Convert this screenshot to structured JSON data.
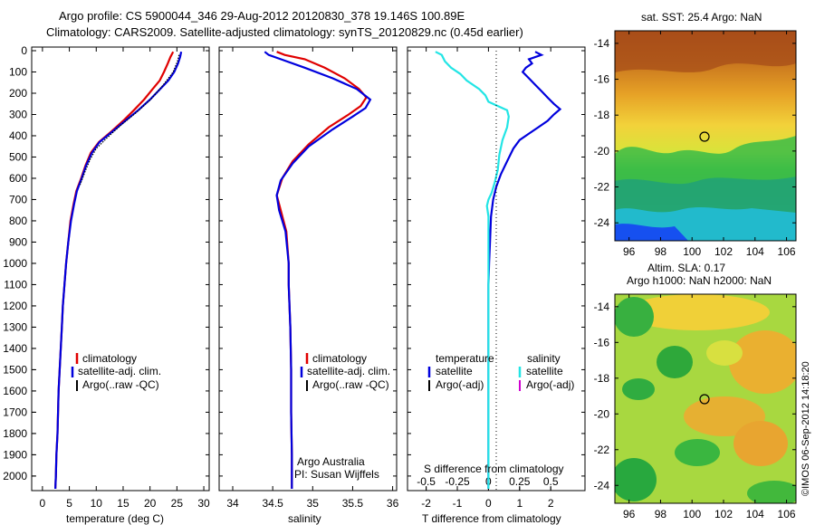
{
  "header": {
    "title_line1": "Argo profile: CS 5900044_346 29-Aug-2012 20120830_378 19.146S 100.89E",
    "title_line2": "Climatology: CARS2009. Satellite-adjusted climatology: synTS_20120829.nc (0.45d earlier)"
  },
  "colors": {
    "climatology": "#e00000",
    "satellite": "#0000dd",
    "argo": "#000000",
    "salinity_sat": "#22e5e5",
    "salinity_argo": "#d000d0"
  },
  "depth_ticks": [
    "0",
    "100",
    "200",
    "300",
    "400",
    "500",
    "600",
    "700",
    "800",
    "900",
    "1000",
    "1100",
    "1200",
    "1300",
    "1400",
    "1500",
    "1600",
    "1700",
    "1800",
    "1900",
    "2000"
  ],
  "chart_data": [
    {
      "type": "line",
      "id": "temperature",
      "xlabel": "temperature (deg C)",
      "xticks": [
        "0",
        "5",
        "10",
        "15",
        "20",
        "25",
        "30"
      ],
      "xlim": [
        -2,
        31
      ],
      "ylim": [
        2060,
        0
      ],
      "legend": [
        "climatology",
        "satellite-adj. clim.",
        "Argo(..raw -QC)"
      ],
      "series": [
        {
          "name": "climatology",
          "color": "#e00000",
          "points": [
            [
              24.3,
              5
            ],
            [
              23.8,
              30
            ],
            [
              23.3,
              60
            ],
            [
              22.6,
              100
            ],
            [
              21.8,
              140
            ],
            [
              20.5,
              180
            ],
            [
              18.9,
              230
            ],
            [
              17.0,
              280
            ],
            [
              15.0,
              330
            ],
            [
              12.8,
              380
            ],
            [
              10.5,
              430
            ],
            [
              9.0,
              480
            ],
            [
              8.0,
              540
            ],
            [
              7.2,
              600
            ],
            [
              6.3,
              660
            ],
            [
              5.8,
              720
            ],
            [
              5.2,
              800
            ],
            [
              4.8,
              900
            ],
            [
              4.4,
              1000
            ],
            [
              4.1,
              1100
            ],
            [
              3.8,
              1200
            ],
            [
              3.6,
              1300
            ],
            [
              3.4,
              1400
            ],
            [
              3.2,
              1500
            ],
            [
              3.0,
              1600
            ],
            [
              2.9,
              1700
            ],
            [
              2.8,
              1800
            ],
            [
              2.6,
              1900
            ],
            [
              2.5,
              2000
            ],
            [
              2.4,
              2060
            ]
          ]
        },
        {
          "name": "satellite-adj. clim.",
          "color": "#0000dd",
          "points": [
            [
              25.8,
              5
            ],
            [
              25.6,
              30
            ],
            [
              25.2,
              60
            ],
            [
              24.5,
              100
            ],
            [
              23.4,
              140
            ],
            [
              21.9,
              180
            ],
            [
              20.0,
              230
            ],
            [
              17.8,
              280
            ],
            [
              15.4,
              330
            ],
            [
              13.0,
              380
            ],
            [
              10.6,
              430
            ],
            [
              9.2,
              480
            ],
            [
              8.1,
              540
            ],
            [
              7.3,
              600
            ],
            [
              6.4,
              660
            ],
            [
              5.9,
              720
            ],
            [
              5.3,
              800
            ],
            [
              4.8,
              900
            ],
            [
              4.4,
              1000
            ],
            [
              4.1,
              1100
            ],
            [
              3.8,
              1200
            ],
            [
              3.6,
              1300
            ],
            [
              3.4,
              1400
            ],
            [
              3.2,
              1500
            ],
            [
              3.0,
              1600
            ],
            [
              2.9,
              1700
            ],
            [
              2.8,
              1800
            ],
            [
              2.6,
              1900
            ],
            [
              2.5,
              2000
            ],
            [
              2.4,
              2060
            ]
          ]
        },
        {
          "name": "Argo(..raw -QC)",
          "color": "#000000",
          "points": [
            [
              25.4,
              20
            ],
            [
              25.1,
              50
            ],
            [
              24.3,
              100
            ],
            [
              22.5,
              160
            ],
            [
              20.1,
              230
            ],
            [
              17.5,
              290
            ],
            [
              14.6,
              350
            ],
            [
              12.0,
              410
            ],
            [
              10.0,
              460
            ],
            [
              8.9,
              510
            ],
            [
              7.9,
              570
            ],
            [
              7.0,
              630
            ]
          ]
        }
      ]
    },
    {
      "type": "line",
      "id": "salinity",
      "xlabel": "salinity",
      "xticks": [
        "34",
        "34.5",
        "35",
        "35.5",
        "36"
      ],
      "xlim": [
        33.83,
        36.05
      ],
      "ylim": [
        2060,
        0
      ],
      "legend": [
        "climatology",
        "satellite-adj. clim.",
        "Argo(..raw -QC)"
      ],
      "annotation": [
        "Argo Australia",
        "PI: Susan Wijffels"
      ],
      "series": [
        {
          "name": "climatology",
          "color": "#e00000",
          "points": [
            [
              34.55,
              5
            ],
            [
              34.65,
              20
            ],
            [
              34.9,
              40
            ],
            [
              35.15,
              80
            ],
            [
              35.4,
              130
            ],
            [
              35.58,
              180
            ],
            [
              35.67,
              220
            ],
            [
              35.6,
              260
            ],
            [
              35.45,
              300
            ],
            [
              35.2,
              360
            ],
            [
              34.95,
              440
            ],
            [
              34.75,
              520
            ],
            [
              34.62,
              600
            ],
            [
              34.55,
              680
            ],
            [
              34.6,
              750
            ],
            [
              34.67,
              850
            ],
            [
              34.7,
              1000
            ],
            [
              34.7,
              1100
            ],
            [
              34.72,
              1300
            ],
            [
              34.73,
              1500
            ],
            [
              34.73,
              1700
            ],
            [
              34.74,
              1900
            ],
            [
              34.74,
              2060
            ]
          ]
        },
        {
          "name": "satellite-adj. clim.",
          "color": "#0000dd",
          "points": [
            [
              34.4,
              5
            ],
            [
              34.45,
              20
            ],
            [
              34.6,
              40
            ],
            [
              34.9,
              80
            ],
            [
              35.25,
              130
            ],
            [
              35.55,
              180
            ],
            [
              35.72,
              230
            ],
            [
              35.66,
              270
            ],
            [
              35.5,
              310
            ],
            [
              35.25,
              370
            ],
            [
              34.95,
              450
            ],
            [
              34.75,
              530
            ],
            [
              34.6,
              610
            ],
            [
              34.55,
              680
            ],
            [
              34.58,
              750
            ],
            [
              34.66,
              850
            ],
            [
              34.7,
              1000
            ],
            [
              34.7,
              1100
            ],
            [
              34.72,
              1300
            ],
            [
              34.73,
              1500
            ],
            [
              34.73,
              1700
            ],
            [
              34.74,
              1900
            ],
            [
              34.74,
              2060
            ]
          ]
        }
      ]
    },
    {
      "type": "line",
      "id": "difference",
      "xlabel": "T difference from climatology",
      "xlabel_top": "S difference from climatology",
      "xticks": [
        "-2",
        "-1",
        "0",
        "1",
        "2"
      ],
      "xticks_top": [
        "-0.5",
        "-0.25",
        "0",
        "0.25",
        "0.5"
      ],
      "xlim": [
        -2.6,
        3.1
      ],
      "ylim": [
        2060,
        0
      ],
      "legend_headers": [
        "temperature",
        "salinity"
      ],
      "legend": [
        "satellite",
        "Argo(-adj)",
        "satellite",
        "Argo(-adj)"
      ],
      "series": [
        {
          "name": "temperature satellite",
          "color": "#0000dd",
          "points": [
            [
              1.5,
              5
            ],
            [
              1.7,
              20
            ],
            [
              1.3,
              40
            ],
            [
              1.4,
              60
            ],
            [
              1.2,
              80
            ],
            [
              1.1,
              100
            ],
            [
              1.3,
              130
            ],
            [
              1.5,
              160
            ],
            [
              1.7,
              190
            ],
            [
              1.9,
              220
            ],
            [
              2.1,
              250
            ],
            [
              2.3,
              275
            ],
            [
              2.1,
              300
            ],
            [
              1.9,
              330
            ],
            [
              1.6,
              360
            ],
            [
              1.3,
              390
            ],
            [
              1.0,
              420
            ],
            [
              0.8,
              460
            ],
            [
              0.6,
              520
            ],
            [
              0.4,
              580
            ],
            [
              0.25,
              640
            ],
            [
              0.15,
              700
            ],
            [
              0.08,
              780
            ],
            [
              0.05,
              900
            ],
            [
              0.02,
              1000
            ],
            [
              0.0,
              1100
            ],
            [
              0.0,
              1300
            ],
            [
              0.0,
              1600
            ],
            [
              0.0,
              2060
            ]
          ]
        },
        {
          "name": "salinity satellite",
          "color": "#22e5e5",
          "points": [
            [
              -1.7,
              5
            ],
            [
              -1.5,
              20
            ],
            [
              -1.4,
              50
            ],
            [
              -1.2,
              80
            ],
            [
              -0.9,
              110
            ],
            [
              -0.7,
              140
            ],
            [
              -0.3,
              180
            ],
            [
              -0.1,
              210
            ],
            [
              0.0,
              240
            ],
            [
              0.3,
              260
            ],
            [
              0.6,
              280
            ],
            [
              0.65,
              310
            ],
            [
              0.6,
              360
            ],
            [
              0.45,
              420
            ],
            [
              0.35,
              490
            ],
            [
              0.3,
              560
            ],
            [
              0.2,
              620
            ],
            [
              0.1,
              670
            ],
            [
              0.0,
              700
            ],
            [
              -0.05,
              730
            ],
            [
              0.0,
              780
            ],
            [
              0.0,
              900
            ],
            [
              0.0,
              1100
            ],
            [
              0.0,
              1300
            ],
            [
              0.0,
              1600
            ],
            [
              0.0,
              2060
            ]
          ]
        }
      ]
    }
  ],
  "maps": {
    "sst": {
      "title": "sat. SST: 25.4 Argo: NaN",
      "yticks": [
        "-14",
        "-16",
        "-18",
        "-20",
        "-22",
        "-24"
      ],
      "xticks": [
        "96",
        "98",
        "100",
        "102",
        "104",
        "106"
      ]
    },
    "sla": {
      "title_line1": "Altim. SLA: 0.17",
      "title_line2": "Argo h1000: NaN h2000: NaN",
      "yticks": [
        "-14",
        "-16",
        "-18",
        "-20",
        "-22",
        "-24"
      ],
      "xticks": [
        "96",
        "98",
        "100",
        "102",
        "104",
        "106"
      ]
    }
  },
  "footer": {
    "stamp": "©IMOS 06-Sep-2012 14:18:20"
  }
}
